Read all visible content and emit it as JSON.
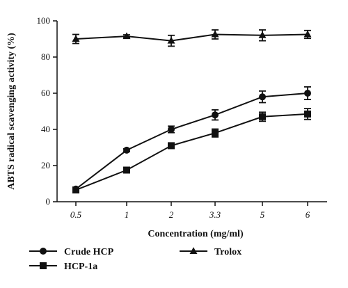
{
  "chart_data": {
    "type": "line",
    "xlabel": "Concentration (mg/ml)",
    "ylabel": "ABTS radical scavenging activity (%)",
    "categories": [
      "0.5",
      "1",
      "2",
      "3.3",
      "5",
      "6"
    ],
    "ylim": [
      0,
      100
    ],
    "yticks": [
      "0",
      "20",
      "40",
      "60",
      "80",
      "100"
    ],
    "grid": false,
    "legend_position": "bottom",
    "series": [
      {
        "name": "Crude HCP",
        "marker": "circle",
        "values": [
          7,
          28.5,
          40,
          48,
          58,
          60
        ],
        "errors": [
          1,
          0.8,
          1.8,
          2.8,
          3.2,
          3.5
        ]
      },
      {
        "name": "HCP-1a",
        "marker": "square",
        "values": [
          6.5,
          17.5,
          31,
          38,
          47,
          48.5
        ],
        "errors": [
          1,
          0.8,
          1.5,
          2.2,
          2.5,
          3
        ]
      },
      {
        "name": "Trolox",
        "marker": "triangle",
        "values": [
          90,
          91.5,
          89,
          92.5,
          92,
          92.5
        ],
        "errors": [
          2.5,
          0.8,
          3,
          2.5,
          3,
          2.2
        ]
      }
    ]
  }
}
